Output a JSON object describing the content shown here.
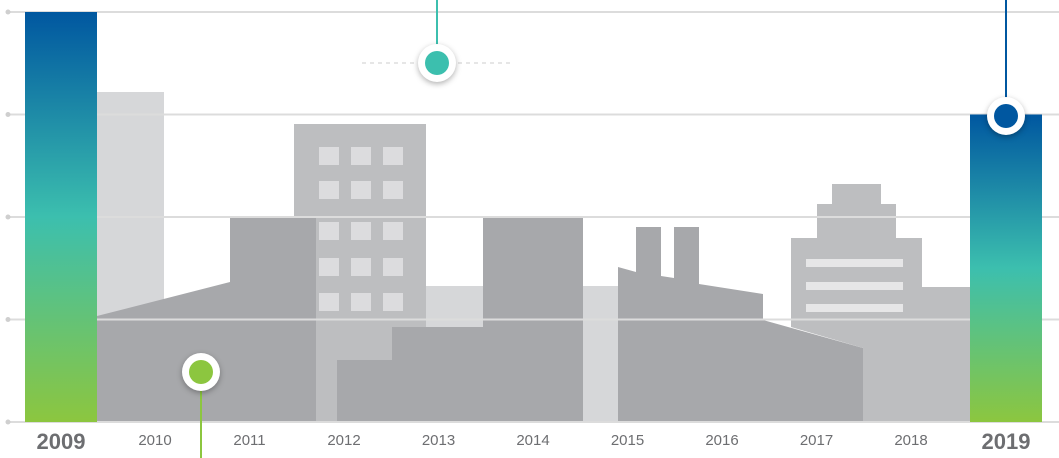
{
  "chart_data": {
    "type": "bar",
    "categories": [
      "2009",
      "2010",
      "2011",
      "2012",
      "2013",
      "2014",
      "2015",
      "2016",
      "2017",
      "2018",
      "2019"
    ],
    "values": [
      4,
      null,
      null,
      null,
      null,
      null,
      null,
      null,
      null,
      null,
      3
    ],
    "ylim": [
      0,
      4
    ],
    "yticks": [
      0,
      1,
      2,
      3,
      4
    ],
    "grid": true,
    "gradient": [
      "#0057a0",
      "#3cbfae",
      "#8cc63f"
    ]
  }
}
